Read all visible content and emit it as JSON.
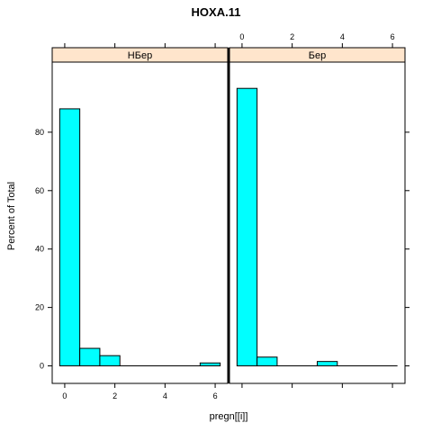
{
  "chart_data": {
    "type": "bar",
    "title": "HOXA.11",
    "xlabel": "pregn[[i]]",
    "ylabel": "Percent of Total",
    "xlim": [
      -0.5,
      6.5
    ],
    "ylim": [
      -6,
      104
    ],
    "x_ticks": [
      0,
      2,
      4,
      6
    ],
    "y_ticks": [
      0,
      20,
      40,
      60,
      80
    ],
    "bin_width": 0.8,
    "colors": {
      "bar_fill": "#00ffff",
      "strip_fill": "#ffe5cc",
      "divider": "#000000"
    },
    "panels": [
      {
        "strip_label": "НБер",
        "bins": [
          {
            "x_start": -0.2,
            "x_end": 0.6,
            "value": 88
          },
          {
            "x_start": 0.6,
            "x_end": 1.4,
            "value": 6
          },
          {
            "x_start": 1.4,
            "x_end": 2.2,
            "value": 3.5
          },
          {
            "x_start": 5.4,
            "x_end": 6.2,
            "value": 1
          }
        ]
      },
      {
        "strip_label": "Бер",
        "bins": [
          {
            "x_start": -0.2,
            "x_end": 0.6,
            "value": 95
          },
          {
            "x_start": 0.6,
            "x_end": 1.4,
            "value": 3
          },
          {
            "x_start": 3.0,
            "x_end": 3.8,
            "value": 1.5
          }
        ]
      }
    ]
  }
}
